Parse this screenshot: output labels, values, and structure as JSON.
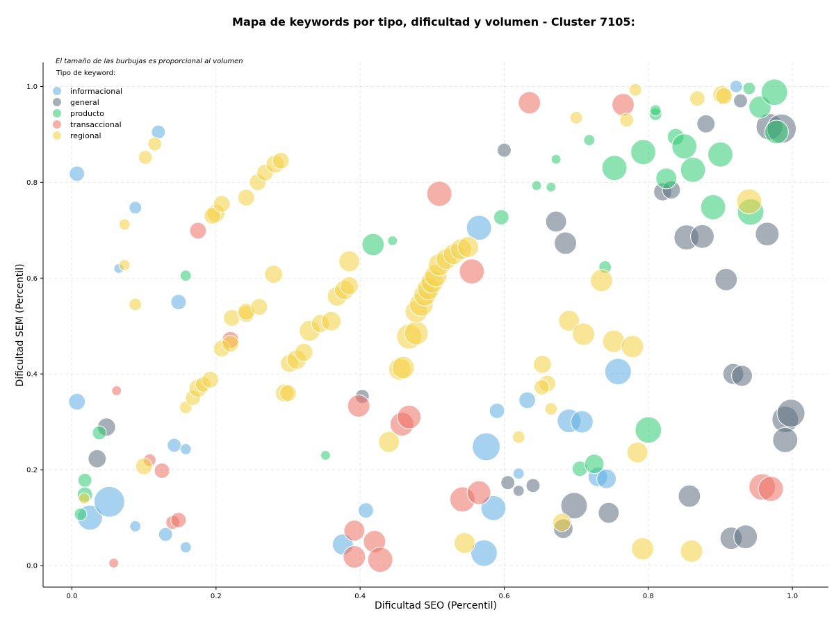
{
  "chart_data": {
    "type": "scatter",
    "title": "Mapa de keywords por tipo, dificultad y volumen - Cluster 7105:",
    "xlabel": "Dificultad SEO (Percentil)",
    "ylabel": "Dificultad SEM (Percentil)",
    "xlim": [
      -0.04,
      1.05
    ],
    "ylim": [
      -0.045,
      1.05
    ],
    "xticks": [
      "0.0",
      "0.2",
      "0.4",
      "0.6",
      "0.8",
      "1.0"
    ],
    "yticks": [
      "0.0",
      "0.2",
      "0.4",
      "0.6",
      "0.8",
      "1.0"
    ],
    "grid": true,
    "annotation": "El tamaño de las burbujas es proporcional al volumen",
    "legend_title": "Tipo de keyword:",
    "legend_position": "top-left",
    "series": [
      {
        "name": "informacional",
        "color": "#5DADE2",
        "points": [
          [
            0.12,
            0.905,
            10
          ],
          [
            0.007,
            0.818,
            11
          ],
          [
            0.088,
            0.747,
            9
          ],
          [
            0.065,
            0.62,
            7
          ],
          [
            0.148,
            0.55,
            11
          ],
          [
            0.007,
            0.342,
            12
          ],
          [
            0.142,
            0.251,
            10
          ],
          [
            0.158,
            0.243,
            8
          ],
          [
            0.025,
            0.1,
            18
          ],
          [
            0.052,
            0.133,
            22
          ],
          [
            0.088,
            0.082,
            8
          ],
          [
            0.13,
            0.065,
            10
          ],
          [
            0.158,
            0.038,
            8
          ],
          [
            0.376,
            0.044,
            15
          ],
          [
            0.408,
            0.115,
            11
          ],
          [
            0.565,
            0.705,
            18
          ],
          [
            0.575,
            0.248,
            20
          ],
          [
            0.59,
            0.323,
            11
          ],
          [
            0.585,
            0.12,
            18
          ],
          [
            0.572,
            0.026,
            19
          ],
          [
            0.62,
            0.192,
            8
          ],
          [
            0.632,
            0.345,
            12
          ],
          [
            0.69,
            0.302,
            17
          ],
          [
            0.708,
            0.3,
            16
          ],
          [
            0.73,
            0.185,
            14
          ],
          [
            0.742,
            0.181,
            14
          ],
          [
            0.758,
            0.405,
            19
          ],
          [
            0.922,
            1.0,
            9
          ]
        ]
      },
      {
        "name": "general",
        "color": "#5D6D7E",
        "points": [
          [
            0.048,
            0.289,
            13
          ],
          [
            0.035,
            0.223,
            13
          ],
          [
            0.403,
            0.353,
            10
          ],
          [
            0.6,
            0.867,
            10
          ],
          [
            0.605,
            0.173,
            10
          ],
          [
            0.62,
            0.156,
            8
          ],
          [
            0.64,
            0.167,
            10
          ],
          [
            0.672,
            0.718,
            15
          ],
          [
            0.685,
            0.673,
            16
          ],
          [
            0.682,
            0.077,
            14
          ],
          [
            0.697,
            0.125,
            19
          ],
          [
            0.745,
            0.11,
            15
          ],
          [
            0.82,
            0.78,
            13
          ],
          [
            0.832,
            0.784,
            13
          ],
          [
            0.853,
            0.685,
            18
          ],
          [
            0.875,
            0.687,
            17
          ],
          [
            0.88,
            0.922,
            13
          ],
          [
            0.908,
            0.597,
            16
          ],
          [
            0.857,
            0.145,
            16
          ],
          [
            0.918,
            0.4,
            15
          ],
          [
            0.93,
            0.396,
            15
          ],
          [
            0.965,
            0.692,
            17
          ],
          [
            0.928,
            0.97,
            10
          ],
          [
            0.968,
            0.916,
            19
          ],
          [
            0.985,
            0.912,
            21
          ],
          [
            0.99,
            0.305,
            19
          ],
          [
            0.998,
            0.318,
            20
          ],
          [
            0.99,
            0.262,
            18
          ],
          [
            0.915,
            0.057,
            16
          ],
          [
            0.935,
            0.06,
            17
          ]
        ]
      },
      {
        "name": "producto",
        "color": "#2ECC71",
        "points": [
          [
            0.158,
            0.605,
            8
          ],
          [
            0.038,
            0.277,
            10
          ],
          [
            0.018,
            0.178,
            10
          ],
          [
            0.018,
            0.148,
            11
          ],
          [
            0.012,
            0.107,
            9
          ],
          [
            0.352,
            0.23,
            7
          ],
          [
            0.418,
            0.67,
            16
          ],
          [
            0.445,
            0.678,
            7
          ],
          [
            0.596,
            0.727,
            11
          ],
          [
            0.645,
            0.793,
            7
          ],
          [
            0.665,
            0.79,
            7
          ],
          [
            0.672,
            0.848,
            7
          ],
          [
            0.705,
            0.202,
            11
          ],
          [
            0.718,
            0.888,
            8
          ],
          [
            0.725,
            0.212,
            14
          ],
          [
            0.74,
            0.623,
            9
          ],
          [
            0.753,
            0.83,
            18
          ],
          [
            0.793,
            0.863,
            18
          ],
          [
            0.81,
            0.942,
            9
          ],
          [
            0.81,
            0.95,
            8
          ],
          [
            0.825,
            0.808,
            15
          ],
          [
            0.838,
            0.895,
            12
          ],
          [
            0.85,
            0.875,
            18
          ],
          [
            0.862,
            0.826,
            18
          ],
          [
            0.89,
            0.748,
            18
          ],
          [
            0.9,
            0.858,
            18
          ],
          [
            0.94,
            0.996,
            9
          ],
          [
            0.942,
            0.738,
            19
          ],
          [
            0.955,
            0.957,
            16
          ],
          [
            0.975,
            0.988,
            19
          ],
          [
            0.978,
            0.905,
            17
          ],
          [
            0.8,
            0.283,
            19
          ]
        ]
      },
      {
        "name": "transaccional",
        "color": "#EC7063",
        "points": [
          [
            0.175,
            0.699,
            12
          ],
          [
            0.062,
            0.365,
            7
          ],
          [
            0.108,
            0.22,
            9
          ],
          [
            0.125,
            0.198,
            11
          ],
          [
            0.14,
            0.09,
            10
          ],
          [
            0.148,
            0.095,
            11
          ],
          [
            0.058,
            0.005,
            7
          ],
          [
            0.22,
            0.471,
            12
          ],
          [
            0.392,
            0.073,
            15
          ],
          [
            0.398,
            0.333,
            16
          ],
          [
            0.392,
            0.018,
            16
          ],
          [
            0.42,
            0.05,
            16
          ],
          [
            0.428,
            0.012,
            18
          ],
          [
            0.458,
            0.295,
            17
          ],
          [
            0.468,
            0.31,
            17
          ],
          [
            0.51,
            0.776,
            18
          ],
          [
            0.555,
            0.614,
            18
          ],
          [
            0.542,
            0.138,
            18
          ],
          [
            0.565,
            0.152,
            17
          ],
          [
            0.635,
            0.966,
            16
          ],
          [
            0.765,
            0.962,
            16
          ],
          [
            0.958,
            0.164,
            19
          ],
          [
            0.97,
            0.16,
            18
          ]
        ]
      },
      {
        "name": "regional",
        "color": "#F4D03F",
        "points": [
          [
            0.102,
            0.852,
            10
          ],
          [
            0.115,
            0.88,
            10
          ],
          [
            0.073,
            0.712,
            8
          ],
          [
            0.073,
            0.627,
            8
          ],
          [
            0.088,
            0.545,
            9
          ],
          [
            0.017,
            0.14,
            8
          ],
          [
            0.1,
            0.207,
            12
          ],
          [
            0.158,
            0.33,
            9
          ],
          [
            0.168,
            0.35,
            11
          ],
          [
            0.175,
            0.37,
            13
          ],
          [
            0.182,
            0.378,
            11
          ],
          [
            0.192,
            0.388,
            12
          ],
          [
            0.208,
            0.453,
            12
          ],
          [
            0.22,
            0.463,
            12
          ],
          [
            0.222,
            0.517,
            12
          ],
          [
            0.242,
            0.525,
            12
          ],
          [
            0.242,
            0.53,
            12
          ],
          [
            0.26,
            0.54,
            12
          ],
          [
            0.2,
            0.735,
            13
          ],
          [
            0.195,
            0.73,
            12
          ],
          [
            0.208,
            0.755,
            12
          ],
          [
            0.242,
            0.768,
            12
          ],
          [
            0.258,
            0.8,
            12
          ],
          [
            0.268,
            0.82,
            12
          ],
          [
            0.282,
            0.838,
            13
          ],
          [
            0.29,
            0.845,
            12
          ],
          [
            0.28,
            0.608,
            13
          ],
          [
            0.295,
            0.36,
            13
          ],
          [
            0.3,
            0.36,
            12
          ],
          [
            0.302,
            0.422,
            13
          ],
          [
            0.312,
            0.43,
            14
          ],
          [
            0.322,
            0.445,
            13
          ],
          [
            0.33,
            0.49,
            15
          ],
          [
            0.345,
            0.505,
            13
          ],
          [
            0.36,
            0.51,
            14
          ],
          [
            0.368,
            0.562,
            14
          ],
          [
            0.378,
            0.575,
            14
          ],
          [
            0.385,
            0.584,
            13
          ],
          [
            0.385,
            0.635,
            15
          ],
          [
            0.44,
            0.258,
            15
          ],
          [
            0.455,
            0.41,
            16
          ],
          [
            0.46,
            0.413,
            16
          ],
          [
            0.468,
            0.478,
            18
          ],
          [
            0.478,
            0.485,
            17
          ],
          [
            0.478,
            0.53,
            16
          ],
          [
            0.485,
            0.545,
            17
          ],
          [
            0.49,
            0.565,
            16
          ],
          [
            0.495,
            0.578,
            16
          ],
          [
            0.5,
            0.592,
            16
          ],
          [
            0.505,
            0.605,
            16
          ],
          [
            0.51,
            0.628,
            16
          ],
          [
            0.52,
            0.64,
            15
          ],
          [
            0.53,
            0.65,
            15
          ],
          [
            0.54,
            0.66,
            15
          ],
          [
            0.55,
            0.665,
            15
          ],
          [
            0.545,
            0.047,
            15
          ],
          [
            0.62,
            0.268,
            9
          ],
          [
            0.653,
            0.42,
            13
          ],
          [
            0.66,
            0.38,
            12
          ],
          [
            0.652,
            0.372,
            11
          ],
          [
            0.665,
            0.327,
            9
          ],
          [
            0.7,
            0.935,
            9
          ],
          [
            0.69,
            0.511,
            15
          ],
          [
            0.71,
            0.483,
            16
          ],
          [
            0.735,
            0.595,
            16
          ],
          [
            0.752,
            0.468,
            16
          ],
          [
            0.77,
            0.93,
            10
          ],
          [
            0.782,
            0.993,
            9
          ],
          [
            0.778,
            0.457,
            16
          ],
          [
            0.785,
            0.236,
            15
          ],
          [
            0.792,
            0.035,
            16
          ],
          [
            0.86,
            0.03,
            16
          ],
          [
            0.868,
            0.975,
            11
          ],
          [
            0.902,
            0.983,
            13
          ],
          [
            0.905,
            0.98,
            12
          ],
          [
            0.94,
            0.76,
            18
          ],
          [
            0.68,
            0.09,
            13
          ]
        ]
      }
    ]
  }
}
